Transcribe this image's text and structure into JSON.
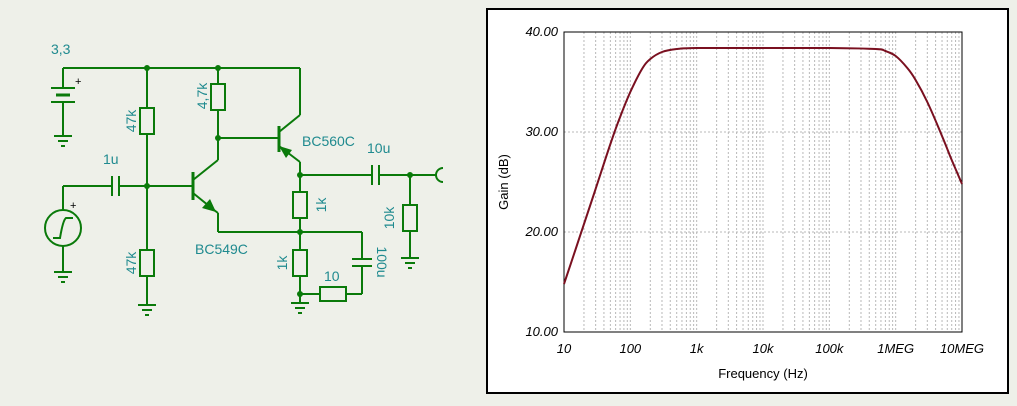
{
  "schematic": {
    "supply_voltage": "3,3",
    "r_top_bias": "47k",
    "r_bottom_bias": "47k",
    "r_collector": "4,7k",
    "c_input": "1u",
    "q1": "BC549C",
    "q2": "BC560C",
    "c_output": "10u",
    "r_q2_collector": "1k",
    "r_load": "10k",
    "r_emitter": "1k",
    "r_emitter_series": "10",
    "c_emitter_bypass": "100u",
    "colors": {
      "wire": "#0a7a0a",
      "label": "#1f8a8f"
    }
  },
  "chart_data": {
    "type": "line",
    "xlabel": "Frequency (Hz)",
    "ylabel": "Gain (dB)",
    "xscale": "log",
    "xlim": [
      10,
      10000000
    ],
    "ylim": [
      10,
      40
    ],
    "x_tick_labels": [
      "10",
      "100",
      "1k",
      "10k",
      "100k",
      "1MEG",
      "10MEG"
    ],
    "y_tick_labels": [
      "10.00",
      "20.00",
      "30.00",
      "40.00"
    ],
    "grid": true,
    "series": [
      {
        "color": "#7a1020",
        "x": [
          10,
          15,
          20,
          30,
          50,
          70,
          100,
          150,
          200,
          300,
          500,
          1000,
          10000,
          100000,
          500000,
          700000,
          1000000,
          1500000,
          2000000,
          3000000,
          5000000,
          7000000,
          10000000
        ],
        "y": [
          14.8,
          18.3,
          20.8,
          24.3,
          28.8,
          31.5,
          34.0,
          36.3,
          37.3,
          38.0,
          38.3,
          38.4,
          38.4,
          38.4,
          38.3,
          38.1,
          37.6,
          36.4,
          35.2,
          33.0,
          29.6,
          27.2,
          24.8
        ]
      }
    ]
  }
}
